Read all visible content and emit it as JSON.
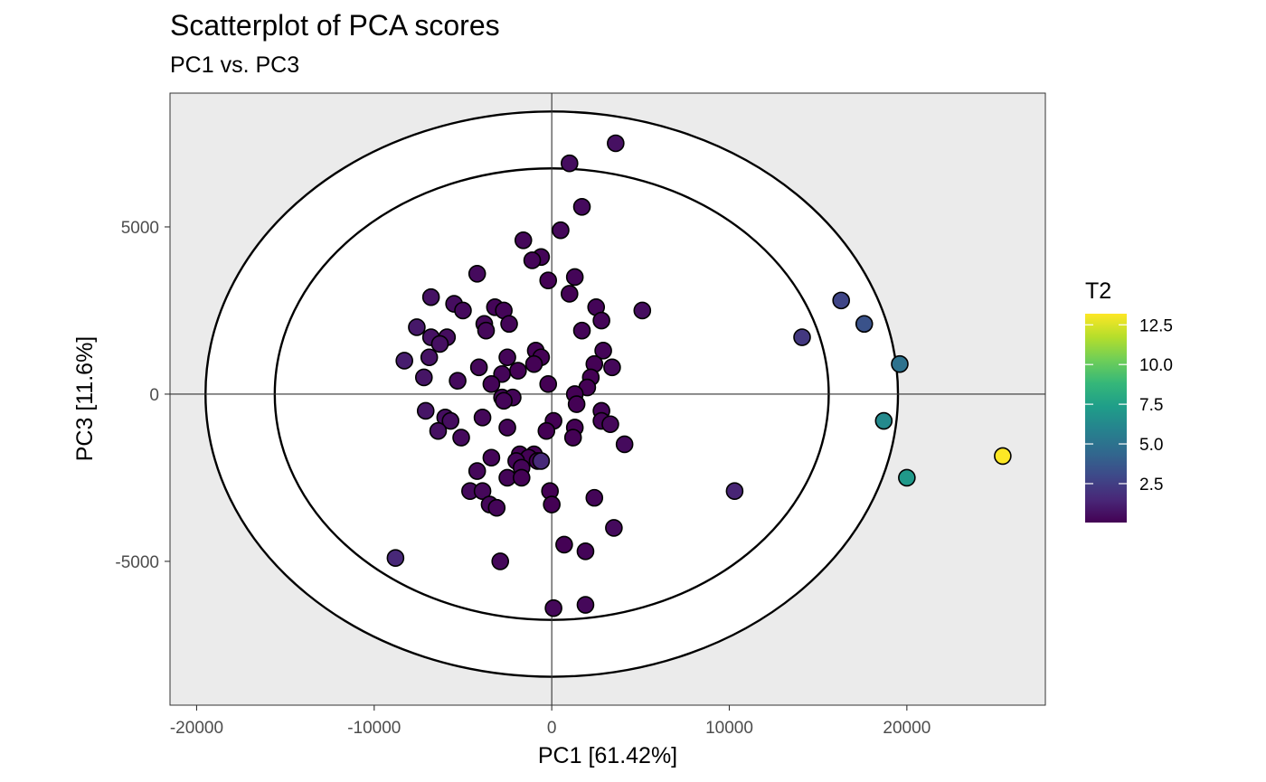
{
  "chart_data": {
    "type": "scatter",
    "title": "Scatterplot of PCA scores",
    "subtitle": "PC1 vs. PC3",
    "xlabel": "PC1 [61.42%]",
    "ylabel": "PC3 [11.6%]",
    "xlim": [
      -21500,
      27800
    ],
    "ylim": [
      -9300,
      9000
    ],
    "x_ticks": [
      -20000,
      -10000,
      0,
      10000,
      20000
    ],
    "x_tick_labels": [
      "-20000",
      "-10000",
      "0",
      "10000",
      "20000"
    ],
    "y_ticks": [
      -5000,
      0,
      5000
    ],
    "y_tick_labels": [
      "-5000",
      "0",
      "5000"
    ],
    "reference_lines": {
      "x": 0,
      "y": 0
    },
    "ellipses": [
      {
        "name": "inner",
        "x_radius": 15600,
        "y_radius": 6750
      },
      {
        "name": "outer",
        "x_radius": 19500,
        "y_radius": 8450
      }
    ],
    "grid": false,
    "panel_background": "#ebebeb",
    "color_legend": {
      "title": "T2",
      "placement": "right",
      "range": [
        0.05,
        13.2
      ],
      "ticks": [
        2.5,
        5.0,
        7.5,
        10.0,
        12.5
      ],
      "tick_labels": [
        "2.5",
        "5.0",
        "7.5",
        "10.0",
        "12.5"
      ],
      "palette": [
        "#440154",
        "#482878",
        "#3e4989",
        "#31688e",
        "#26828e",
        "#1f9e89",
        "#35b779",
        "#6ece58",
        "#b5de2b",
        "#fde725"
      ]
    },
    "points": [
      {
        "x": 3600,
        "y": 7500,
        "t2": 0.6
      },
      {
        "x": 1000,
        "y": 6900,
        "t2": 0.5
      },
      {
        "x": 1700,
        "y": 5600,
        "t2": 0.4
      },
      {
        "x": 500,
        "y": 4900,
        "t2": 0.3
      },
      {
        "x": -1600,
        "y": 4600,
        "t2": 0.3
      },
      {
        "x": -600,
        "y": 4100,
        "t2": 0.2
      },
      {
        "x": -1100,
        "y": 4000,
        "t2": 0.2
      },
      {
        "x": -4200,
        "y": 3600,
        "t2": 0.4
      },
      {
        "x": 1300,
        "y": 3500,
        "t2": 0.2
      },
      {
        "x": -200,
        "y": 3400,
        "t2": 0.1
      },
      {
        "x": 1000,
        "y": 3000,
        "t2": 0.1
      },
      {
        "x": -6800,
        "y": 2900,
        "t2": 0.7
      },
      {
        "x": -5500,
        "y": 2700,
        "t2": 0.5
      },
      {
        "x": 2500,
        "y": 2600,
        "t2": 0.2
      },
      {
        "x": -3200,
        "y": 2600,
        "t2": 0.2
      },
      {
        "x": -2700,
        "y": 2500,
        "t2": 0.2
      },
      {
        "x": -5000,
        "y": 2500,
        "t2": 0.4
      },
      {
        "x": 5100,
        "y": 2500,
        "t2": 0.5
      },
      {
        "x": 2800,
        "y": 2200,
        "t2": 0.2
      },
      {
        "x": -2400,
        "y": 2100,
        "t2": 0.2
      },
      {
        "x": -3800,
        "y": 2100,
        "t2": 0.3
      },
      {
        "x": -7600,
        "y": 2000,
        "t2": 0.9
      },
      {
        "x": -3700,
        "y": 1900,
        "t2": 0.3
      },
      {
        "x": 1700,
        "y": 1900,
        "t2": 0.2
      },
      {
        "x": -5900,
        "y": 1700,
        "t2": 0.5
      },
      {
        "x": -6800,
        "y": 1700,
        "t2": 0.7
      },
      {
        "x": -6300,
        "y": 1500,
        "t2": 0.6
      },
      {
        "x": -900,
        "y": 1300,
        "t2": 0.1
      },
      {
        "x": 2900,
        "y": 1300,
        "t2": 0.2
      },
      {
        "x": -600,
        "y": 1100,
        "t2": 0.1
      },
      {
        "x": -2500,
        "y": 1100,
        "t2": 0.2
      },
      {
        "x": -6900,
        "y": 1100,
        "t2": 0.7
      },
      {
        "x": -8300,
        "y": 1000,
        "t2": 1.1
      },
      {
        "x": 2400,
        "y": 900,
        "t2": 0.1
      },
      {
        "x": -1000,
        "y": 900,
        "t2": 0.1
      },
      {
        "x": 3400,
        "y": 800,
        "t2": 0.3
      },
      {
        "x": -4100,
        "y": 800,
        "t2": 0.3
      },
      {
        "x": -1900,
        "y": 700,
        "t2": 0.1
      },
      {
        "x": -2800,
        "y": 600,
        "t2": 0.2
      },
      {
        "x": -7200,
        "y": 500,
        "t2": 0.8
      },
      {
        "x": 2200,
        "y": 500,
        "t2": 0.1
      },
      {
        "x": -5300,
        "y": 400,
        "t2": 0.4
      },
      {
        "x": -3400,
        "y": 300,
        "t2": 0.2
      },
      {
        "x": -200,
        "y": 300,
        "t2": 0.05
      },
      {
        "x": 2000,
        "y": 200,
        "t2": 0.1
      },
      {
        "x": 1300,
        "y": 0,
        "t2": 0.1
      },
      {
        "x": -2800,
        "y": -100,
        "t2": 0.2
      },
      {
        "x": -2200,
        "y": -100,
        "t2": 0.2
      },
      {
        "x": -2700,
        "y": -200,
        "t2": 0.2
      },
      {
        "x": 1400,
        "y": -300,
        "t2": 0.1
      },
      {
        "x": -7100,
        "y": -500,
        "t2": 0.8
      },
      {
        "x": 2800,
        "y": -500,
        "t2": 0.2
      },
      {
        "x": -3900,
        "y": -700,
        "t2": 0.3
      },
      {
        "x": -6000,
        "y": -700,
        "t2": 0.5
      },
      {
        "x": -5700,
        "y": -800,
        "t2": 0.5
      },
      {
        "x": 2800,
        "y": -800,
        "t2": 0.2
      },
      {
        "x": 100,
        "y": -800,
        "t2": 0.05
      },
      {
        "x": 3300,
        "y": -900,
        "t2": 0.3
      },
      {
        "x": 1300,
        "y": -1000,
        "t2": 0.1
      },
      {
        "x": -2500,
        "y": -1000,
        "t2": 0.2
      },
      {
        "x": -6400,
        "y": -1100,
        "t2": 0.6
      },
      {
        "x": -300,
        "y": -1100,
        "t2": 0.05
      },
      {
        "x": -5100,
        "y": -1300,
        "t2": 0.4
      },
      {
        "x": 1200,
        "y": -1300,
        "t2": 0.1
      },
      {
        "x": 4100,
        "y": -1500,
        "t2": 0.4
      },
      {
        "x": -1800,
        "y": -1800,
        "t2": 0.1
      },
      {
        "x": -3400,
        "y": -1900,
        "t2": 0.2
      },
      {
        "x": -1000,
        "y": -1800,
        "t2": 0.1
      },
      {
        "x": -1300,
        "y": -1900,
        "t2": 0.1
      },
      {
        "x": -800,
        "y": -2000,
        "t2": 0.1
      },
      {
        "x": -2000,
        "y": -2000,
        "t2": 0.2
      },
      {
        "x": -600,
        "y": -2000,
        "t2": 1.6
      },
      {
        "x": -1700,
        "y": -2200,
        "t2": 0.2
      },
      {
        "x": -4200,
        "y": -2300,
        "t2": 0.3
      },
      {
        "x": -2500,
        "y": -2500,
        "t2": 0.2
      },
      {
        "x": -1700,
        "y": -2500,
        "t2": 0.1
      },
      {
        "x": -4600,
        "y": -2900,
        "t2": 0.4
      },
      {
        "x": -3900,
        "y": -2900,
        "t2": 0.3
      },
      {
        "x": -100,
        "y": -2900,
        "t2": 0.05
      },
      {
        "x": 2400,
        "y": -3100,
        "t2": 0.2
      },
      {
        "x": -3500,
        "y": -3300,
        "t2": 0.3
      },
      {
        "x": -3100,
        "y": -3400,
        "t2": 0.2
      },
      {
        "x": 0,
        "y": -3300,
        "t2": 0.05
      },
      {
        "x": 3500,
        "y": -4000,
        "t2": 0.4
      },
      {
        "x": 700,
        "y": -4500,
        "t2": 0.1
      },
      {
        "x": 1900,
        "y": -4700,
        "t2": 0.2
      },
      {
        "x": -8800,
        "y": -4900,
        "t2": 1.5
      },
      {
        "x": -2900,
        "y": -5000,
        "t2": 0.3
      },
      {
        "x": 1900,
        "y": -6300,
        "t2": 0.3
      },
      {
        "x": 100,
        "y": -6400,
        "t2": 0.3
      },
      {
        "x": 10300,
        "y": -2900,
        "t2": 1.4
      },
      {
        "x": 14100,
        "y": 1700,
        "t2": 2.2
      },
      {
        "x": 16300,
        "y": 2800,
        "t2": 2.8
      },
      {
        "x": 17600,
        "y": 2100,
        "t2": 3.4
      },
      {
        "x": 19600,
        "y": 900,
        "t2": 5.0
      },
      {
        "x": 18700,
        "y": -800,
        "t2": 6.3
      },
      {
        "x": 20000,
        "y": -2500,
        "t2": 7.1
      },
      {
        "x": 25400,
        "y": -1850,
        "t2": 13.2
      }
    ]
  }
}
